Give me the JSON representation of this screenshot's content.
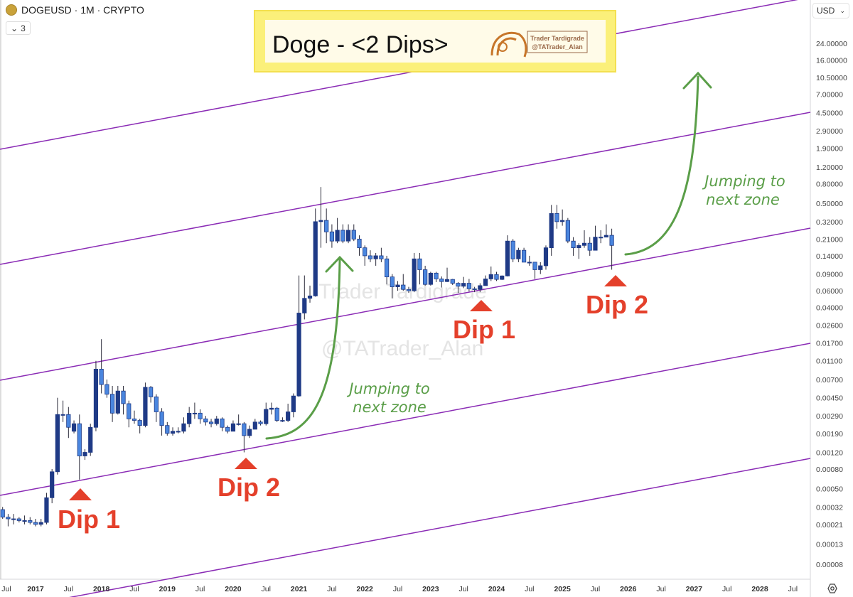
{
  "header": {
    "symbol_line": "DOGEUSD · 1M · CRYPTO",
    "indicator_toggle": "3",
    "currency": "USD"
  },
  "title_box": {
    "title": "Doge - <2 Dips>",
    "logo_line1": "Trader Tardigrade",
    "logo_line2": "@TATrader_Alan"
  },
  "watermark": {
    "line1": "Trader Tardigrade",
    "line2": "@TATrader_Alan"
  },
  "annotations": {
    "dips": [
      "Dip 1",
      "Dip 2",
      "Dip 1",
      "Dip 2"
    ],
    "jump1": [
      "Jumping to",
      "next zone"
    ],
    "jump2": [
      "Jumping to",
      "next zone"
    ]
  },
  "colors": {
    "up": "#1f3a86",
    "down": "#4a86df",
    "channel": "#8a2bb5",
    "arrow": "#5a9e48",
    "dip": "#e4402b"
  },
  "chart_data": {
    "type": "candlestick",
    "interval": "1M",
    "scale": "log",
    "y_ticks": [
      "24.00000",
      "16.00000",
      "10.50000",
      "7.00000",
      "4.50000",
      "2.90000",
      "1.90000",
      "1.20000",
      "0.80000",
      "0.50000",
      "0.32000",
      "0.21000",
      "0.14000",
      "0.09000",
      "0.06000",
      "0.04000",
      "0.02600",
      "0.01700",
      "0.01100",
      "0.00700",
      "0.00450",
      "0.00290",
      "0.00190",
      "0.00120",
      "0.00080",
      "0.00050",
      "0.00032",
      "0.00021",
      "0.00013",
      "0.00008"
    ],
    "x_ticks": [
      "Jul",
      "2017",
      "Jul",
      "2018",
      "Jul",
      "2019",
      "Jul",
      "2020",
      "Jul",
      "2021",
      "Jul",
      "2022",
      "Jul",
      "2023",
      "Jul",
      "2024",
      "Jul",
      "2025",
      "Jul",
      "2026",
      "Jul",
      "2027",
      "Jul",
      "2028",
      "Jul"
    ],
    "x_start": "2016-07",
    "candles_fields": [
      "month",
      "open",
      "high",
      "low",
      "close"
    ],
    "candles": [
      [
        "2016-07",
        0.0003,
        0.00032,
        0.00024,
        0.00025
      ],
      [
        "2016-08",
        0.00025,
        0.00027,
        0.0002,
        0.00024
      ],
      [
        "2016-09",
        0.00024,
        0.00027,
        0.00021,
        0.00024
      ],
      [
        "2016-10",
        0.00024,
        0.00025,
        0.00022,
        0.00023
      ],
      [
        "2016-11",
        0.00023,
        0.00026,
        0.00021,
        0.00023
      ],
      [
        "2016-12",
        0.00023,
        0.00025,
        0.00021,
        0.00022
      ],
      [
        "2017-01",
        0.00022,
        0.00024,
        0.0002,
        0.00021
      ],
      [
        "2017-02",
        0.00021,
        0.00024,
        0.0002,
        0.00022
      ],
      [
        "2017-03",
        0.00022,
        0.00045,
        0.00021,
        0.0004
      ],
      [
        "2017-04",
        0.0004,
        0.0008,
        0.00035,
        0.00075
      ],
      [
        "2017-05",
        0.00075,
        0.0045,
        0.0007,
        0.003
      ],
      [
        "2017-06",
        0.003,
        0.0042,
        0.0025,
        0.003
      ],
      [
        "2017-07",
        0.003,
        0.0036,
        0.0017,
        0.0022
      ],
      [
        "2017-08",
        0.002,
        0.0026,
        0.0019,
        0.0024
      ],
      [
        "2017-09",
        0.0024,
        0.003,
        0.00062,
        0.0011
      ],
      [
        "2017-10",
        0.0011,
        0.0013,
        0.001,
        0.0012
      ],
      [
        "2017-11",
        0.0012,
        0.0024,
        0.0011,
        0.0022
      ],
      [
        "2017-12",
        0.0022,
        0.011,
        0.002,
        0.009
      ],
      [
        "2018-01",
        0.009,
        0.0186,
        0.005,
        0.0062
      ],
      [
        "2018-02",
        0.0062,
        0.007,
        0.0045,
        0.0049
      ],
      [
        "2018-03",
        0.0049,
        0.006,
        0.0025,
        0.0031
      ],
      [
        "2018-04",
        0.0031,
        0.006,
        0.003,
        0.0053
      ],
      [
        "2018-05",
        0.0053,
        0.006,
        0.003,
        0.0039
      ],
      [
        "2018-06",
        0.0039,
        0.0042,
        0.0022,
        0.0027
      ],
      [
        "2018-07",
        0.0027,
        0.0033,
        0.0024,
        0.0026
      ],
      [
        "2018-08",
        0.0026,
        0.0027,
        0.0019,
        0.0023
      ],
      [
        "2018-09",
        0.0023,
        0.0065,
        0.0022,
        0.0058
      ],
      [
        "2018-10",
        0.0058,
        0.006,
        0.004,
        0.0046
      ],
      [
        "2018-11",
        0.0046,
        0.0049,
        0.0025,
        0.0032
      ],
      [
        "2018-12",
        0.0032,
        0.0035,
        0.0018,
        0.0023
      ],
      [
        "2019-01",
        0.0023,
        0.0025,
        0.0018,
        0.0019
      ],
      [
        "2019-02",
        0.0019,
        0.0022,
        0.0018,
        0.002
      ],
      [
        "2019-03",
        0.002,
        0.0022,
        0.0019,
        0.002
      ],
      [
        "2019-04",
        0.002,
        0.0028,
        0.0019,
        0.0024
      ],
      [
        "2019-05",
        0.0024,
        0.0036,
        0.0022,
        0.0031
      ],
      [
        "2019-06",
        0.0031,
        0.004,
        0.0027,
        0.0031
      ],
      [
        "2019-07",
        0.0031,
        0.0034,
        0.0024,
        0.0027
      ],
      [
        "2019-08",
        0.0027,
        0.0029,
        0.0023,
        0.0025
      ],
      [
        "2019-09",
        0.0025,
        0.0027,
        0.0022,
        0.0024
      ],
      [
        "2019-10",
        0.0024,
        0.0029,
        0.0023,
        0.0027
      ],
      [
        "2019-11",
        0.0027,
        0.0028,
        0.002,
        0.0022
      ],
      [
        "2019-12",
        0.0022,
        0.0023,
        0.0019,
        0.002
      ],
      [
        "2020-01",
        0.002,
        0.0026,
        0.002,
        0.0024
      ],
      [
        "2020-02",
        0.0024,
        0.003,
        0.0023,
        0.0024
      ],
      [
        "2020-03",
        0.0024,
        0.0025,
        0.0012,
        0.0018
      ],
      [
        "2020-04",
        0.0018,
        0.0023,
        0.0017,
        0.0021
      ],
      [
        "2020-05",
        0.0021,
        0.0027,
        0.0021,
        0.0025
      ],
      [
        "2020-06",
        0.0025,
        0.0026,
        0.0023,
        0.0024
      ],
      [
        "2020-07",
        0.0024,
        0.004,
        0.0023,
        0.0034
      ],
      [
        "2020-08",
        0.0034,
        0.004,
        0.003,
        0.0035
      ],
      [
        "2020-09",
        0.0035,
        0.0036,
        0.0025,
        0.0026
      ],
      [
        "2020-10",
        0.0026,
        0.0028,
        0.0025,
        0.0026
      ],
      [
        "2020-11",
        0.0026,
        0.0039,
        0.0025,
        0.0032
      ],
      [
        "2020-12",
        0.0032,
        0.005,
        0.0028,
        0.0047
      ],
      [
        "2021-01",
        0.0047,
        0.087,
        0.0046,
        0.035
      ],
      [
        "2021-02",
        0.035,
        0.087,
        0.03,
        0.05
      ],
      [
        "2021-03",
        0.05,
        0.068,
        0.045,
        0.053
      ],
      [
        "2021-04",
        0.053,
        0.44,
        0.052,
        0.32
      ],
      [
        "2021-05",
        0.32,
        0.74,
        0.17,
        0.33
      ],
      [
        "2021-06",
        0.33,
        0.44,
        0.19,
        0.25
      ],
      [
        "2021-07",
        0.25,
        0.3,
        0.17,
        0.2
      ],
      [
        "2021-08",
        0.2,
        0.35,
        0.19,
        0.26
      ],
      [
        "2021-09",
        0.26,
        0.3,
        0.19,
        0.2
      ],
      [
        "2021-10",
        0.2,
        0.3,
        0.19,
        0.26
      ],
      [
        "2021-11",
        0.26,
        0.3,
        0.2,
        0.21
      ],
      [
        "2021-12",
        0.21,
        0.23,
        0.14,
        0.17
      ],
      [
        "2022-01",
        0.17,
        0.18,
        0.11,
        0.14
      ],
      [
        "2022-02",
        0.14,
        0.16,
        0.12,
        0.13
      ],
      [
        "2022-03",
        0.13,
        0.15,
        0.11,
        0.14
      ],
      [
        "2022-04",
        0.14,
        0.17,
        0.12,
        0.13
      ],
      [
        "2022-05",
        0.13,
        0.14,
        0.07,
        0.084
      ],
      [
        "2022-06",
        0.084,
        0.09,
        0.05,
        0.066
      ],
      [
        "2022-07",
        0.066,
        0.076,
        0.06,
        0.069
      ],
      [
        "2022-08",
        0.069,
        0.09,
        0.06,
        0.062
      ],
      [
        "2022-09",
        0.062,
        0.066,
        0.057,
        0.06
      ],
      [
        "2022-10",
        0.06,
        0.15,
        0.058,
        0.13
      ],
      [
        "2022-11",
        0.13,
        0.15,
        0.07,
        0.1
      ],
      [
        "2022-12",
        0.1,
        0.11,
        0.068,
        0.07
      ],
      [
        "2023-01",
        0.07,
        0.095,
        0.068,
        0.092
      ],
      [
        "2023-02",
        0.092,
        0.095,
        0.074,
        0.08
      ],
      [
        "2023-03",
        0.08,
        0.085,
        0.065,
        0.075
      ],
      [
        "2023-04",
        0.075,
        0.105,
        0.074,
        0.079
      ],
      [
        "2023-05",
        0.079,
        0.08,
        0.069,
        0.072
      ],
      [
        "2023-06",
        0.072,
        0.074,
        0.057,
        0.067
      ],
      [
        "2023-07",
        0.067,
        0.084,
        0.064,
        0.072
      ],
      [
        "2023-08",
        0.072,
        0.08,
        0.059,
        0.063
      ],
      [
        "2023-09",
        0.063,
        0.066,
        0.058,
        0.062
      ],
      [
        "2023-10",
        0.062,
        0.072,
        0.058,
        0.068
      ],
      [
        "2023-11",
        0.068,
        0.087,
        0.068,
        0.08
      ],
      [
        "2023-12",
        0.08,
        0.108,
        0.076,
        0.089
      ],
      [
        "2024-01",
        0.089,
        0.095,
        0.076,
        0.079
      ],
      [
        "2024-02",
        0.079,
        0.087,
        0.078,
        0.086
      ],
      [
        "2024-03",
        0.086,
        0.23,
        0.085,
        0.2
      ],
      [
        "2024-04",
        0.2,
        0.21,
        0.12,
        0.13
      ],
      [
        "2024-05",
        0.13,
        0.17,
        0.12,
        0.16
      ],
      [
        "2024-06",
        0.16,
        0.17,
        0.12,
        0.12
      ],
      [
        "2024-07",
        0.12,
        0.14,
        0.11,
        0.12
      ],
      [
        "2024-08",
        0.12,
        0.12,
        0.08,
        0.1
      ],
      [
        "2024-09",
        0.1,
        0.12,
        0.09,
        0.11
      ],
      [
        "2024-10",
        0.11,
        0.18,
        0.1,
        0.17
      ],
      [
        "2024-11",
        0.17,
        0.48,
        0.14,
        0.39
      ],
      [
        "2024-12",
        0.39,
        0.48,
        0.27,
        0.32
      ],
      [
        "2025-01",
        0.32,
        0.43,
        0.29,
        0.33
      ],
      [
        "2025-02",
        0.33,
        0.35,
        0.19,
        0.2
      ],
      [
        "2025-03",
        0.2,
        0.22,
        0.14,
        0.17
      ],
      [
        "2025-04",
        0.17,
        0.19,
        0.13,
        0.18
      ],
      [
        "2025-05",
        0.18,
        0.26,
        0.17,
        0.19
      ],
      [
        "2025-06",
        0.19,
        0.22,
        0.14,
        0.16
      ],
      [
        "2025-07",
        0.16,
        0.29,
        0.16,
        0.22
      ],
      [
        "2025-08",
        0.22,
        0.26,
        0.19,
        0.22
      ],
      [
        "2025-09",
        0.22,
        0.3,
        0.22,
        0.23
      ],
      [
        "2025-10",
        0.23,
        0.27,
        0.1,
        0.18
      ]
    ]
  }
}
